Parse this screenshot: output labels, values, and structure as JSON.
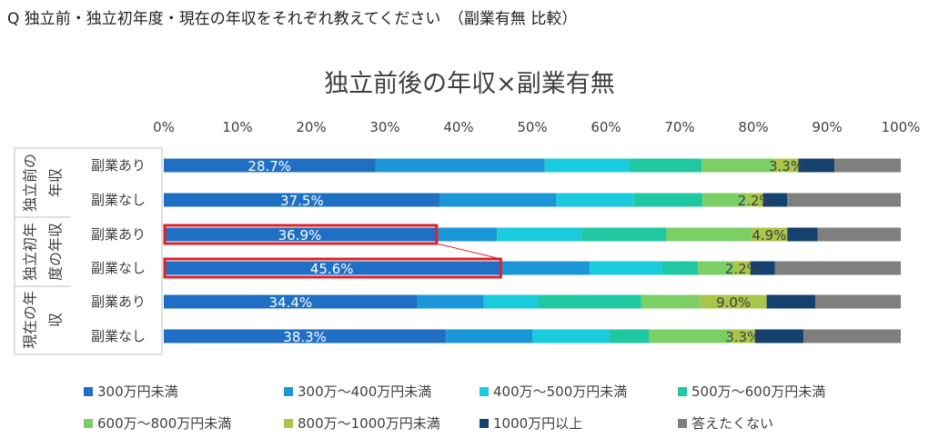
{
  "question": "Q  独立前・独立初年度・現在の年収をそれぞれ教えてください　（副業有無 比較）",
  "chart_data": {
    "type": "bar",
    "orientation": "horizontal-stacked-100",
    "title": "独立前後の年収×副業有無",
    "x_ticks": [
      "0%",
      "10%",
      "20%",
      "30%",
      "40%",
      "50%",
      "60%",
      "70%",
      "80%",
      "90%",
      "100%"
    ],
    "xlim": [
      0,
      100
    ],
    "groups": [
      {
        "label": "独立前の年収",
        "col1": "独立前の",
        "col2": "年収"
      },
      {
        "label": "独立初年度の年収",
        "col1": "独立初年",
        "col2": "度の年収"
      },
      {
        "label": "現在の年収",
        "col1": "現在の年",
        "col2": "収"
      }
    ],
    "categories": [
      "副業あり",
      "副業なし",
      "副業あり",
      "副業なし",
      "副業あり",
      "副業なし"
    ],
    "series": [
      {
        "name": "300万円未満",
        "color": "#1f6fc5",
        "values": [
          28.7,
          37.5,
          36.9,
          45.6,
          34.4,
          38.3
        ]
      },
      {
        "name": "300万～400万円未満",
        "color": "#1b96d6",
        "values": [
          23.0,
          15.8,
          8.3,
          12.2,
          9.0,
          11.7
        ]
      },
      {
        "name": "400万～500万円未満",
        "color": "#19cbdc",
        "values": [
          11.5,
          10.5,
          11.5,
          9.8,
          7.4,
          10.5
        ]
      },
      {
        "name": "500万～600万円未満",
        "color": "#1fc8a0",
        "values": [
          9.8,
          9.3,
          11.5,
          4.9,
          14.0,
          5.4
        ]
      },
      {
        "name": "600万～800万円未満",
        "color": "#7ccf65",
        "values": [
          9.8,
          6.0,
          11.5,
          4.9,
          8.0,
          11.0
        ]
      },
      {
        "name": "800万～1000万円未満",
        "color": "#a9c64a",
        "values": [
          3.3,
          2.2,
          4.9,
          2.2,
          9.0,
          3.3
        ]
      },
      {
        "name": "1000万円以上",
        "color": "#14416e",
        "values": [
          4.9,
          3.3,
          4.1,
          3.3,
          6.6,
          6.6
        ]
      },
      {
        "name": "答えたくない",
        "color": "#7f7f7f",
        "values": [
          9.0,
          15.4,
          11.3,
          17.1,
          11.6,
          13.2
        ]
      }
    ],
    "data_labels": [
      {
        "row": 0,
        "series": 0,
        "text": "28.7%"
      },
      {
        "row": 0,
        "series": 5,
        "text": "3.3%"
      },
      {
        "row": 1,
        "series": 0,
        "text": "37.5%"
      },
      {
        "row": 1,
        "series": 5,
        "text": "2.2%"
      },
      {
        "row": 2,
        "series": 0,
        "text": "36.9%"
      },
      {
        "row": 2,
        "series": 5,
        "text": "4.9%"
      },
      {
        "row": 3,
        "series": 0,
        "text": "45.6%"
      },
      {
        "row": 3,
        "series": 5,
        "text": "2.2%"
      },
      {
        "row": 4,
        "series": 0,
        "text": "34.4%"
      },
      {
        "row": 4,
        "series": 5,
        "text": "9.0%"
      },
      {
        "row": 5,
        "series": 0,
        "text": "38.3%"
      },
      {
        "row": 5,
        "series": 5,
        "text": "3.3%"
      }
    ],
    "highlight": {
      "rows": [
        2,
        3
      ],
      "series": 0,
      "color": "#e0202a",
      "connector": true
    },
    "legend_position": "bottom"
  }
}
